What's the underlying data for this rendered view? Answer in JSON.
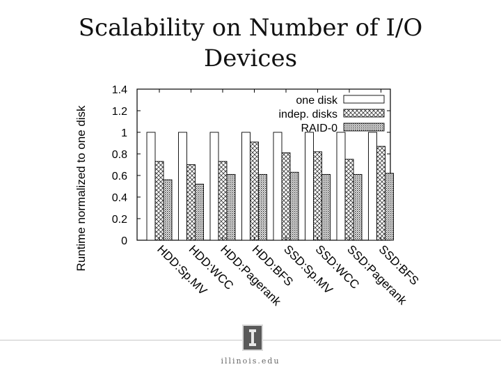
{
  "slide": {
    "title_line1": "Scalability on Number of I/O",
    "title_line2": "Devices",
    "footer_text": "illinois.edu"
  },
  "chart_data": {
    "type": "bar",
    "title": "",
    "xlabel": "",
    "ylabel": "Runtime normalized to one disk",
    "ylim": [
      0,
      1.4
    ],
    "yticks": [
      "0",
      "0.2",
      "0.4",
      "0.6",
      "0.8",
      "1",
      "1.2",
      "1.4"
    ],
    "categories": [
      "HDD:Sp.MV",
      "HDD:WCC",
      "HDD:Pagerank",
      "HDD:BFS",
      "SSD:Sp.MV",
      "SSD:WCC",
      "SSD:Pagerank",
      "SSD:BFS"
    ],
    "series": [
      {
        "name": "one disk",
        "values": [
          1,
          1,
          1,
          1,
          1,
          1,
          1,
          1
        ]
      },
      {
        "name": "indep. disks",
        "values": [
          0.73,
          0.7,
          0.73,
          0.91,
          0.81,
          0.82,
          0.75,
          0.87
        ]
      },
      {
        "name": "RAID-0",
        "values": [
          0.56,
          0.52,
          0.61,
          0.61,
          0.63,
          0.61,
          0.61,
          0.62
        ]
      }
    ],
    "legend_position": "top-right",
    "grid": false
  }
}
